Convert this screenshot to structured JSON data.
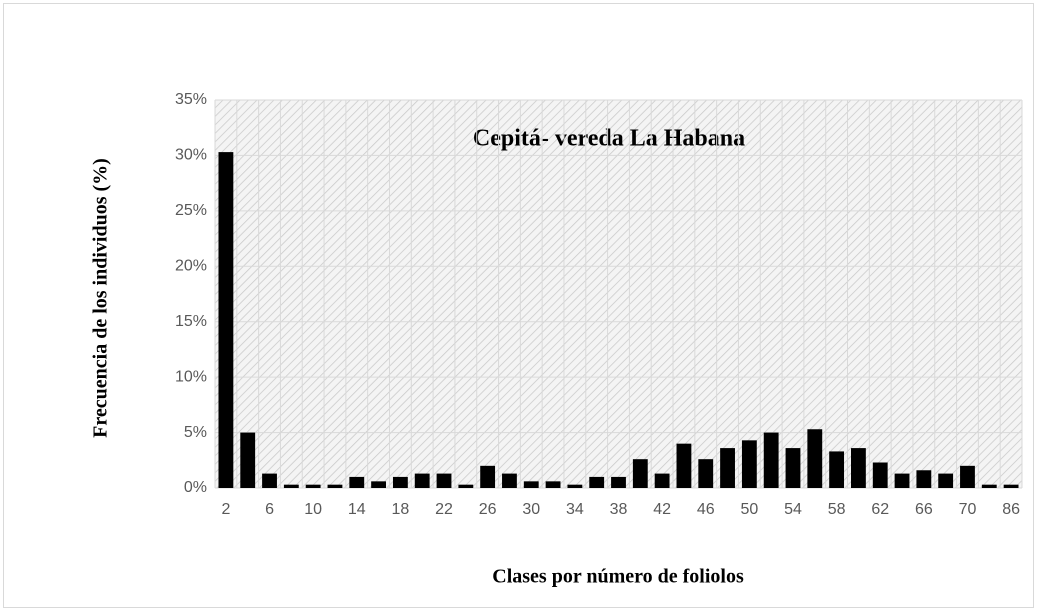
{
  "chart_data": {
    "type": "bar",
    "title": "Cepitá- vereda La Habana",
    "x_label": "Clases por número de foliolos",
    "y_label": "Frecuencia de los individuos (%)",
    "categories": [
      "2",
      null,
      "6",
      null,
      "10",
      null,
      "14",
      null,
      "18",
      null,
      "22",
      null,
      "26",
      null,
      "30",
      null,
      "34",
      null,
      "38",
      null,
      "42",
      null,
      "46",
      null,
      "50",
      null,
      "54",
      null,
      "58",
      null,
      "62",
      null,
      "66",
      null,
      "70",
      null,
      "86"
    ],
    "values": [
      30.3,
      5,
      1.3,
      0.3,
      0.3,
      0.3,
      1,
      0.6,
      1,
      1.3,
      1.3,
      0.3,
      2,
      1.3,
      0.6,
      0.6,
      0.3,
      1,
      1,
      2.6,
      1.3,
      4,
      2.6,
      3.6,
      4.3,
      5,
      3.6,
      5.3,
      3.3,
      3.6,
      2.3,
      1.3,
      1.6,
      1.3,
      2,
      0.3,
      0.3
    ],
    "color": "#000000",
    "ylim": [
      0,
      35
    ],
    "yticks": [
      {
        "value": 0,
        "label": "0%"
      },
      {
        "value": 5,
        "label": "5%"
      },
      {
        "value": 10,
        "label": "10%"
      },
      {
        "value": 15,
        "label": "15%"
      },
      {
        "value": 20,
        "label": "20%"
      },
      {
        "value": 25,
        "label": "25%"
      },
      {
        "value": 30,
        "label": "30%"
      },
      {
        "value": 35,
        "label": "35%"
      }
    ],
    "grid": true
  }
}
